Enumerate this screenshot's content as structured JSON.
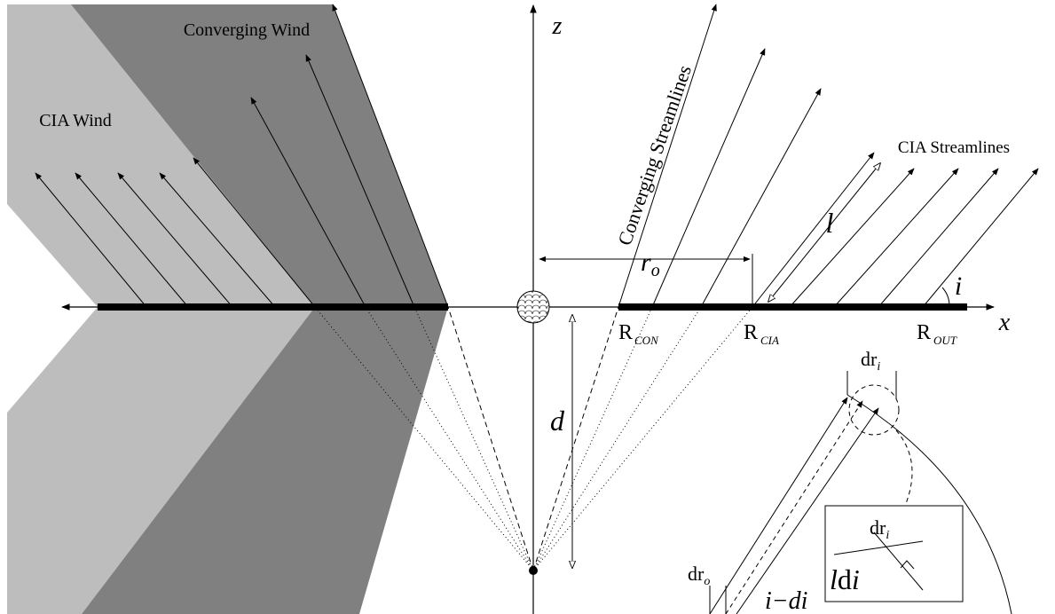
{
  "labels": {
    "converging_wind": "Converging Wind",
    "cia_wind": "CIA Wind",
    "converging_streamlines": "Converging Streamlines",
    "cia_streamlines": "CIA Streamlines",
    "z_axis": "z",
    "x_axis": "x",
    "l": "l",
    "r_o": {
      "main": "r",
      "sub": "o"
    },
    "i": "i",
    "r_con": {
      "main": "R",
      "sub": "CON"
    },
    "r_cia": {
      "main": "R",
      "sub": "CIA"
    },
    "r_out": {
      "main": "R",
      "sub": "OUT"
    },
    "d": "d",
    "dr_i": {
      "main": "dr",
      "sub": "i"
    },
    "dr_o": {
      "main": "dr",
      "sub": "o"
    },
    "inset_dr_i": {
      "main": "dr",
      "sub": "i"
    },
    "l_di": {
      "l": "l",
      "d": "d",
      "i": "i"
    },
    "i_minus_di": "i−di"
  }
}
